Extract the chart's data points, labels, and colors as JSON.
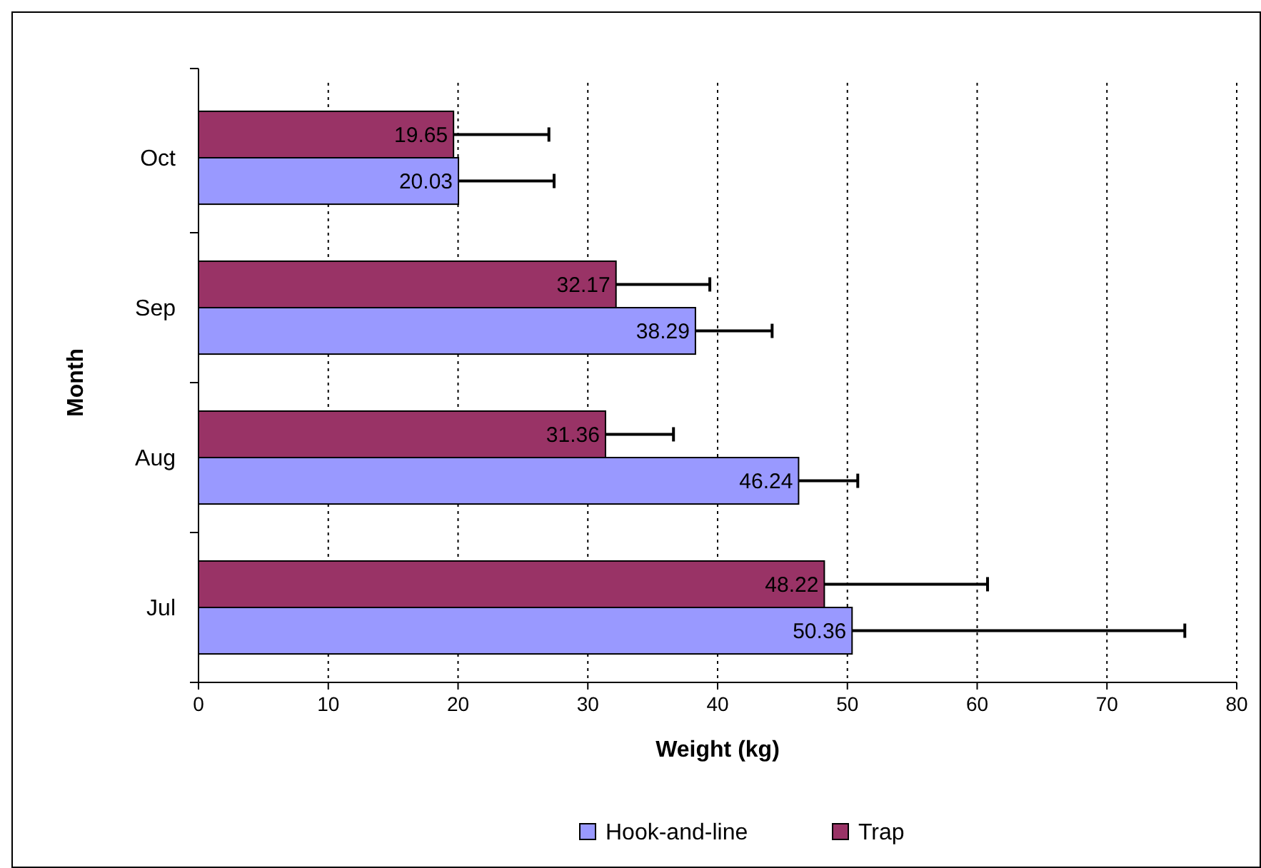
{
  "chart_data": {
    "type": "bar",
    "orientation": "horizontal",
    "xlabel": "Weight (kg)",
    "ylabel": "Month",
    "categories": [
      "Oct",
      "Sep",
      "Aug",
      "Jul"
    ],
    "series": [
      {
        "name": "Hook-and-line",
        "color": "#9999ff",
        "values": [
          20.03,
          38.29,
          46.24,
          50.36
        ],
        "errors": [
          [
            20.03,
            27.4
          ],
          [
            38.29,
            44.2
          ],
          [
            46.24,
            50.8
          ],
          [
            50.36,
            76.0
          ]
        ]
      },
      {
        "name": "Trap",
        "color": "#993366",
        "values": [
          19.65,
          32.17,
          31.36,
          48.22
        ],
        "errors": [
          [
            19.65,
            27.0
          ],
          [
            32.17,
            39.4
          ],
          [
            31.36,
            36.6
          ],
          [
            48.22,
            60.8
          ]
        ]
      }
    ],
    "xlim": [
      0,
      80
    ],
    "xticks": [
      0,
      10,
      20,
      30,
      40,
      50,
      60,
      70,
      80
    ],
    "grid": "x",
    "legend": "bottom",
    "data_labels": true
  }
}
